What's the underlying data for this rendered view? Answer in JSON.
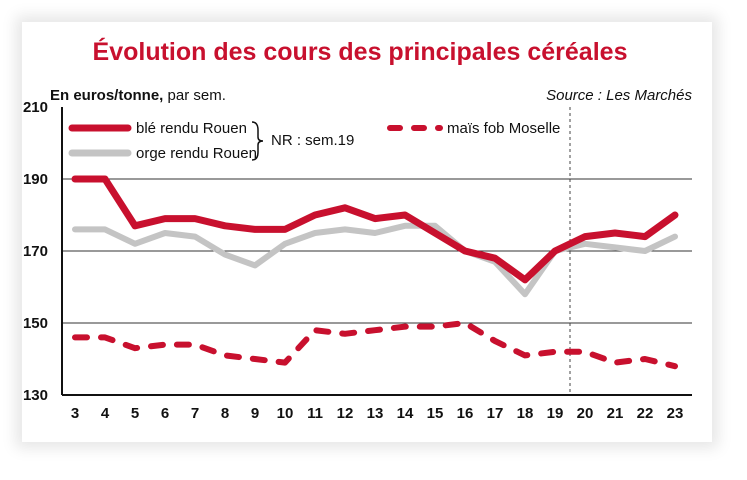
{
  "chart_data": {
    "type": "line",
    "title": "Évolution des cours des principales céréales",
    "unit_label": "En euros/tonne,",
    "unit_suffix": " par sem.",
    "source": "Source : Les Marchés",
    "note": "NR : sem.19",
    "x": [
      3,
      4,
      5,
      6,
      7,
      8,
      9,
      10,
      11,
      12,
      13,
      14,
      15,
      16,
      17,
      18,
      19,
      20,
      21,
      22,
      23
    ],
    "x_tick_labels": [
      "3",
      "4",
      "5",
      "6",
      "7",
      "8",
      "9",
      "10",
      "11",
      "12",
      "13",
      "14",
      "15",
      "16",
      "17",
      "18",
      "19",
      "20",
      "21",
      "22",
      "23"
    ],
    "y_ticks": [
      130,
      150,
      170,
      190,
      210
    ],
    "y_tick_labels": [
      "130",
      "150",
      "170",
      "190",
      "210"
    ],
    "ylim": [
      130,
      210
    ],
    "gridlines_at": [
      150,
      170,
      190
    ],
    "marker_line_x": 19.5,
    "series": [
      {
        "name": "blé rendu Rouen",
        "color": "#c8102e",
        "style": "solid",
        "values": [
          190,
          190,
          177,
          179,
          179,
          177,
          176,
          176,
          180,
          182,
          179,
          180,
          175,
          170,
          168,
          162,
          170,
          174,
          175,
          174,
          180
        ]
      },
      {
        "name": "orge rendu Rouen",
        "color": "#c4c4c4",
        "style": "solid",
        "values": [
          176,
          176,
          172,
          175,
          174,
          169,
          166,
          172,
          175,
          176,
          175,
          177,
          177,
          170,
          167,
          158,
          170,
          172,
          171,
          170,
          174
        ]
      },
      {
        "name": "maïs fob Moselle",
        "color": "#c8102e",
        "style": "dashed",
        "values": [
          146,
          146,
          143,
          144,
          144,
          141,
          140,
          139,
          148,
          147,
          148,
          149,
          149,
          150,
          145,
          141,
          142,
          142,
          139,
          140,
          138
        ]
      }
    ]
  }
}
